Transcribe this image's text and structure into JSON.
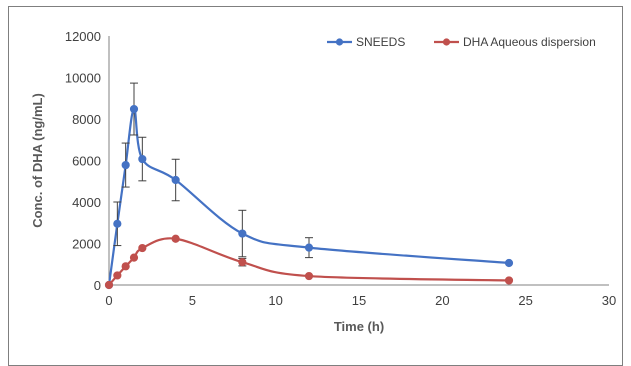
{
  "chart_data": {
    "type": "line",
    "title": "",
    "xlabel": "Time (h)",
    "ylabel": "Conc. of DHA (ng/mL)",
    "xlim": [
      0,
      30
    ],
    "ylim": [
      0,
      12000
    ],
    "x_ticks": [
      0,
      5,
      10,
      15,
      20,
      25,
      30
    ],
    "y_ticks": [
      0,
      2000,
      4000,
      6000,
      8000,
      10000,
      12000
    ],
    "grid": false,
    "legend_position": "top-right",
    "series": [
      {
        "name": "SNEEDS",
        "color": "#4472c4",
        "smooth": true,
        "x": [
          0,
          0.5,
          1,
          1.5,
          2,
          4,
          8,
          12,
          24
        ],
        "y": [
          0,
          2950,
          5780,
          8480,
          6070,
          5060,
          2480,
          1800,
          1060
        ],
        "error": [
          0,
          1050,
          1060,
          1250,
          1050,
          1000,
          1120,
          480,
          0
        ]
      },
      {
        "name": "DHA Aqueous dispersion",
        "color": "#c0504d",
        "smooth": true,
        "x": [
          0,
          0.5,
          1,
          1.5,
          2,
          4,
          8,
          12,
          24
        ],
        "y": [
          0,
          460,
          900,
          1320,
          1780,
          2230,
          1100,
          430,
          220
        ],
        "error": [
          0,
          0,
          0,
          0,
          0,
          0,
          180,
          0,
          0
        ]
      }
    ]
  }
}
